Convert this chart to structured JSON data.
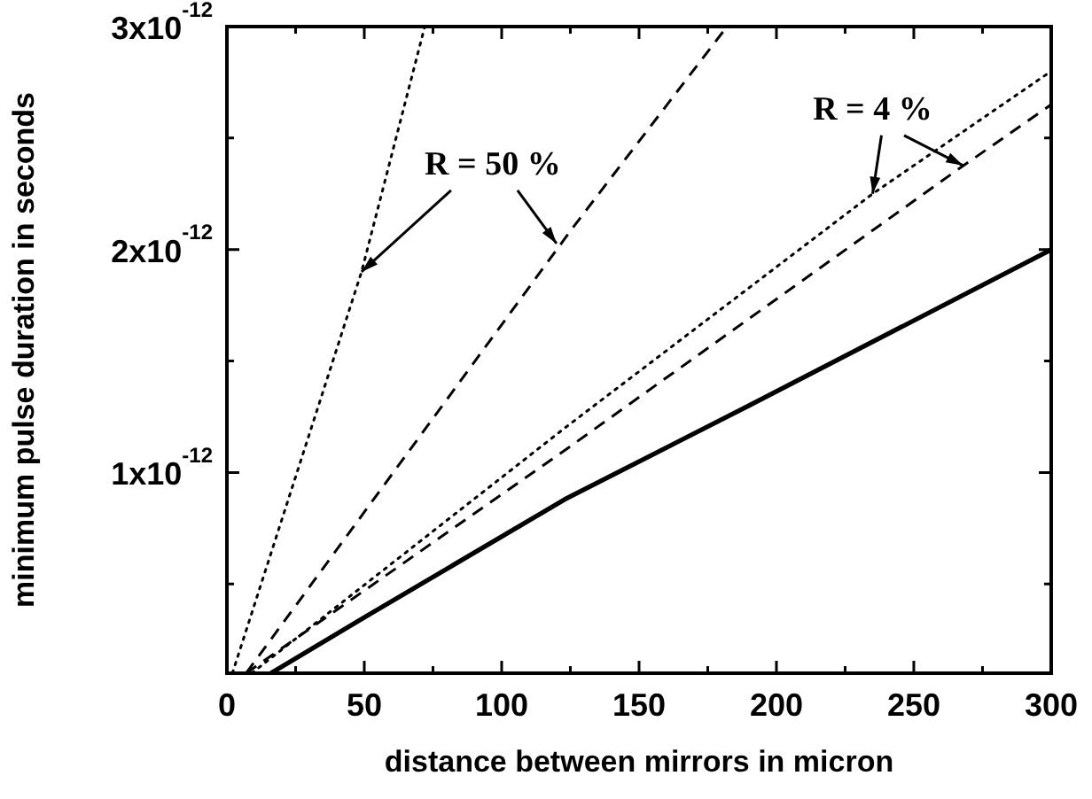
{
  "chart_data": {
    "type": "line",
    "xlabel": "distance between mirrors in micron",
    "ylabel": "minimum pulse duration in seconds",
    "xlim": [
      0,
      300
    ],
    "xticks": [
      0,
      {
        "value": 25,
        "label": null
      },
      50,
      {
        "value": 75,
        "label": null
      },
      100,
      {
        "value": 125,
        "label": null
      },
      150,
      {
        "value": 175,
        "label": null
      },
      200,
      {
        "value": 225,
        "label": null
      },
      250,
      {
        "value": 275,
        "label": null
      },
      300
    ],
    "ylim": [
      1e-13,
      3e-12
    ],
    "yticks": [
      {
        "value": 5e-13,
        "label": null
      },
      {
        "value": 1e-12,
        "label": "1x10$^{-12}$"
      },
      {
        "value": 1.5e-12,
        "label": null
      },
      {
        "value": 2e-12,
        "label": "2x10$^{-12}$"
      },
      {
        "value": 2.5e-12,
        "label": null
      },
      {
        "value": 3e-12,
        "label": "3x10$^{-12}$"
      }
    ],
    "grid": false,
    "legend": false,
    "marker": "none",
    "series": [
      {
        "color": "#000000",
        "line_style": "solid",
        "x": [
          16,
          50,
          123,
          190,
          300
        ],
        "values": [
          1e-13,
          3.5e-13,
          8.8e-13,
          1.3e-12,
          2e-12
        ]
      },
      {
        "color": "#000000",
        "line_style": "dotted",
        "x": [
          2,
          49,
          72
        ],
        "values": [
          1e-13,
          1.9e-12,
          3e-12
        ]
      },
      {
        "color": "#000000",
        "line_style": "dashed",
        "x": [
          7,
          126,
          182
        ],
        "values": [
          1e-13,
          2.1e-12,
          3e-12
        ]
      },
      {
        "color": "#000000",
        "line_style": "dotted",
        "x": [
          9,
          123,
          235,
          300
        ],
        "values": [
          1e-13,
          1.2e-12,
          2.25e-12,
          2.8e-12
        ]
      },
      {
        "color": "#000000",
        "line_style": "dashed",
        "x": [
          7,
          123,
          265,
          300
        ],
        "values": [
          1e-13,
          1.1e-12,
          2.35e-12,
          2.65e-12
        ]
      }
    ],
    "annotations": [
      {
        "text": "R = 50 %",
        "x": 49,
        "y": 1.9e-12
      },
      {
        "text": "R = 4 %",
        "x": 235,
        "y": 2.25e-12
      }
    ]
  }
}
